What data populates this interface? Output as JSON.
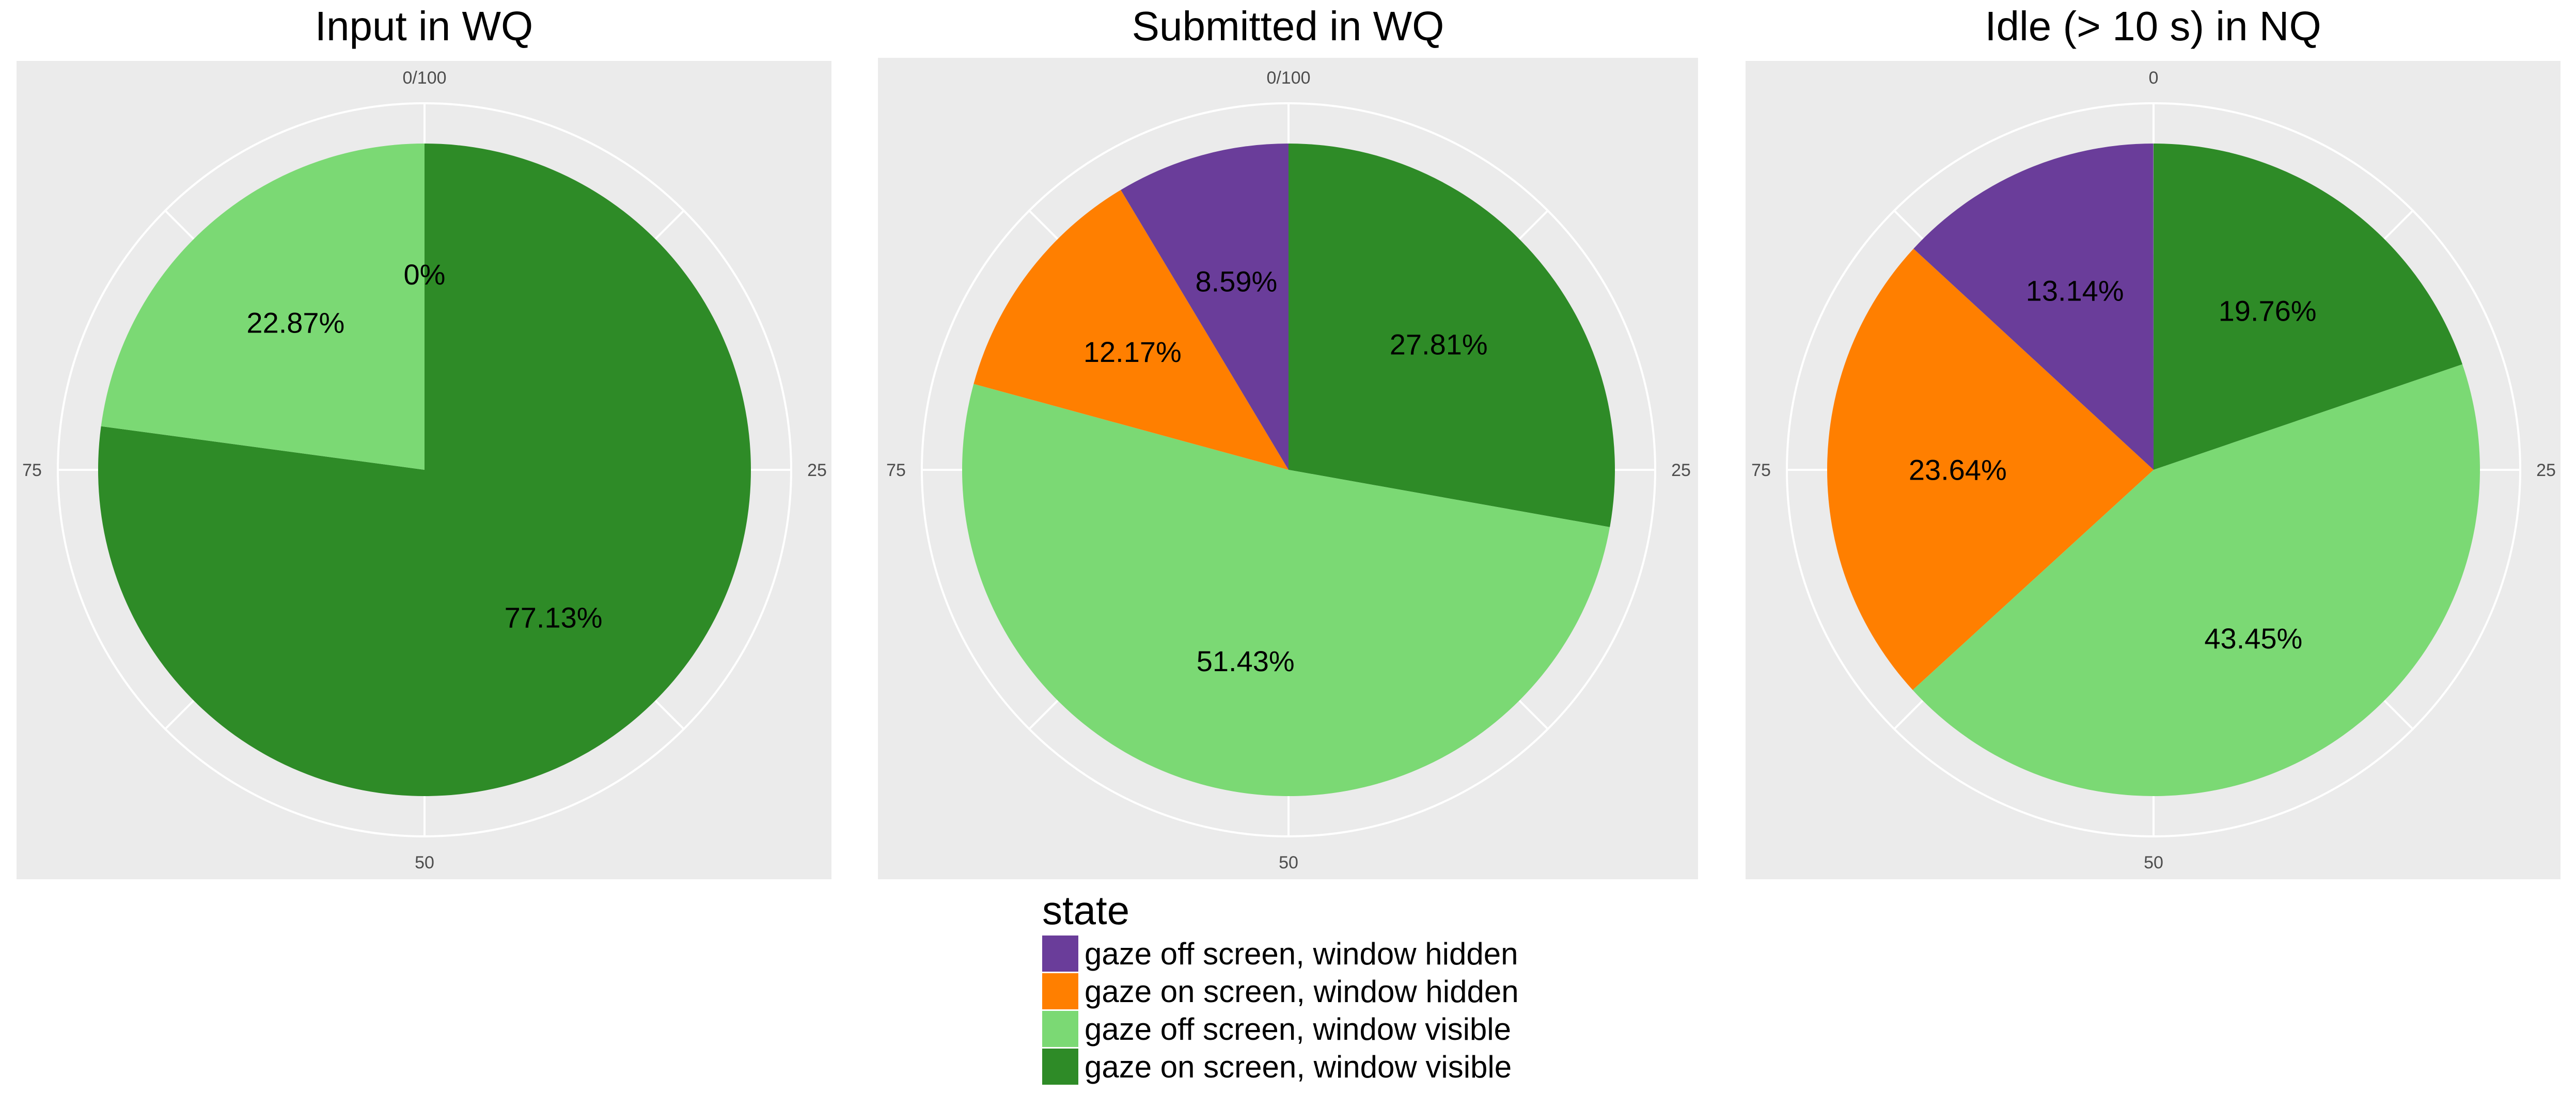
{
  "colors": {
    "panel_background": "#ebebeb",
    "grid": "#ffffff",
    "gaze off screen, window hidden": "#6a3d9a",
    "gaze on screen, window hidden": "#ff7f00",
    "gaze off screen, window visible": "#7bd974",
    "gaze on screen, window visible": "#2e8b27"
  },
  "legend": {
    "title": "state",
    "items": [
      "gaze off screen, window hidden",
      "gaze on screen, window hidden",
      "gaze off screen, window visible",
      "gaze on screen, window visible"
    ]
  },
  "chart_data": [
    {
      "type": "pie",
      "title": "Input in WQ",
      "start": "top",
      "direction": "clockwise",
      "theta_ticks": [
        {
          "value": 0,
          "label": "0/100"
        },
        {
          "value": 25,
          "label": "25"
        },
        {
          "value": 50,
          "label": "50"
        },
        {
          "value": 75,
          "label": "75"
        }
      ],
      "slices": [
        {
          "category": "gaze on screen, window visible",
          "value": 77.13,
          "label": "77.13%"
        },
        {
          "category": "gaze off screen, window visible",
          "value": 22.87,
          "label": "22.87%"
        },
        {
          "category": "gaze on screen, window hidden",
          "value": 0,
          "label": "0%"
        }
      ]
    },
    {
      "type": "pie",
      "title": "Submitted in WQ",
      "start": "top",
      "direction": "clockwise",
      "theta_ticks": [
        {
          "value": 0,
          "label": "0/100"
        },
        {
          "value": 25,
          "label": "25"
        },
        {
          "value": 50,
          "label": "50"
        },
        {
          "value": 75,
          "label": "75"
        }
      ],
      "slices": [
        {
          "category": "gaze on screen, window visible",
          "value": 27.81,
          "label": "27.81%"
        },
        {
          "category": "gaze off screen, window visible",
          "value": 51.43,
          "label": "51.43%"
        },
        {
          "category": "gaze on screen, window hidden",
          "value": 12.17,
          "label": "12.17%"
        },
        {
          "category": "gaze off screen, window hidden",
          "value": 8.59,
          "label": "8.59%"
        }
      ]
    },
    {
      "type": "pie",
      "title": "Idle (> 10 s) in NQ",
      "start": "top",
      "direction": "clockwise",
      "theta_ticks": [
        {
          "value": 0,
          "label": "0"
        },
        {
          "value": 25,
          "label": "25"
        },
        {
          "value": 50,
          "label": "50"
        },
        {
          "value": 75,
          "label": "75"
        }
      ],
      "slices": [
        {
          "category": "gaze on screen, window visible",
          "value": 19.76,
          "label": "19.76%"
        },
        {
          "category": "gaze off screen, window visible",
          "value": 43.45,
          "label": "43.45%"
        },
        {
          "category": "gaze on screen, window hidden",
          "value": 23.64,
          "label": "23.64%"
        },
        {
          "category": "gaze off screen, window hidden",
          "value": 13.14,
          "label": "13.14%"
        }
      ]
    }
  ]
}
